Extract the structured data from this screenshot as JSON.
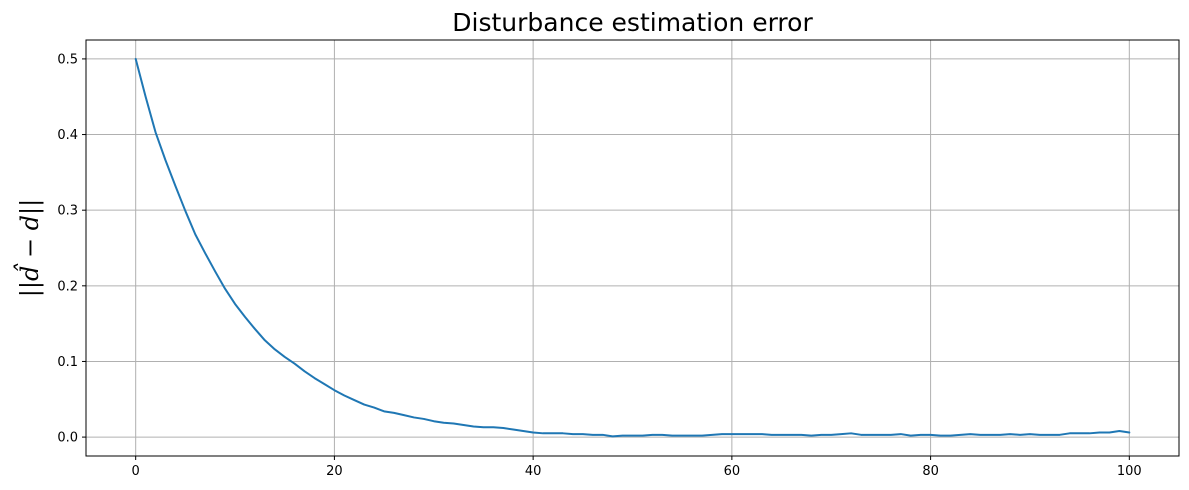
{
  "chart_data": {
    "type": "line",
    "title": "Disturbance estimation error",
    "ylabel": "||d̂ − d||",
    "xlabel": "",
    "xlim": [
      -5,
      105
    ],
    "ylim": [
      -0.025,
      0.525
    ],
    "x_ticks": [
      0,
      20,
      40,
      60,
      80,
      100
    ],
    "x_tick_labels": [
      "0",
      "20",
      "40",
      "60",
      "80",
      "100"
    ],
    "y_ticks": [
      0.0,
      0.1,
      0.2,
      0.3,
      0.4,
      0.5
    ],
    "y_tick_labels": [
      "0.0",
      "0.1",
      "0.2",
      "0.3",
      "0.4",
      "0.5"
    ],
    "grid": true,
    "line_color": "#1f77b4",
    "grid_color": "#b0b0b0",
    "x": [
      0,
      1,
      2,
      3,
      4,
      5,
      6,
      7,
      8,
      9,
      10,
      11,
      12,
      13,
      14,
      15,
      16,
      17,
      18,
      19,
      20,
      21,
      22,
      23,
      24,
      25,
      26,
      27,
      28,
      29,
      30,
      31,
      32,
      33,
      34,
      35,
      36,
      37,
      38,
      39,
      40,
      41,
      42,
      43,
      44,
      45,
      46,
      47,
      48,
      49,
      50,
      51,
      52,
      53,
      54,
      55,
      56,
      57,
      58,
      59,
      60,
      61,
      62,
      63,
      64,
      65,
      66,
      67,
      68,
      69,
      70,
      71,
      72,
      73,
      74,
      75,
      76,
      77,
      78,
      79,
      80,
      81,
      82,
      83,
      84,
      85,
      86,
      87,
      88,
      89,
      90,
      91,
      92,
      93,
      94,
      95,
      96,
      97,
      98,
      99,
      100
    ],
    "y": [
      0.5,
      0.45,
      0.403,
      0.366,
      0.332,
      0.299,
      0.268,
      0.243,
      0.219,
      0.196,
      0.176,
      0.159,
      0.143,
      0.128,
      0.116,
      0.106,
      0.097,
      0.087,
      0.078,
      0.07,
      0.062,
      0.055,
      0.049,
      0.043,
      0.039,
      0.034,
      0.032,
      0.029,
      0.026,
      0.024,
      0.021,
      0.019,
      0.018,
      0.016,
      0.014,
      0.013,
      0.013,
      0.012,
      0.01,
      0.008,
      0.006,
      0.005,
      0.005,
      0.005,
      0.004,
      0.004,
      0.003,
      0.003,
      0.001,
      0.002,
      0.002,
      0.002,
      0.003,
      0.003,
      0.002,
      0.002,
      0.002,
      0.002,
      0.003,
      0.004,
      0.004,
      0.004,
      0.004,
      0.004,
      0.003,
      0.003,
      0.003,
      0.003,
      0.002,
      0.003,
      0.003,
      0.004,
      0.005,
      0.003,
      0.003,
      0.003,
      0.003,
      0.004,
      0.002,
      0.003,
      0.003,
      0.002,
      0.002,
      0.003,
      0.004,
      0.003,
      0.003,
      0.003,
      0.004,
      0.003,
      0.004,
      0.003,
      0.003,
      0.003,
      0.005,
      0.005,
      0.005,
      0.006,
      0.006,
      0.008,
      0.006
    ]
  }
}
